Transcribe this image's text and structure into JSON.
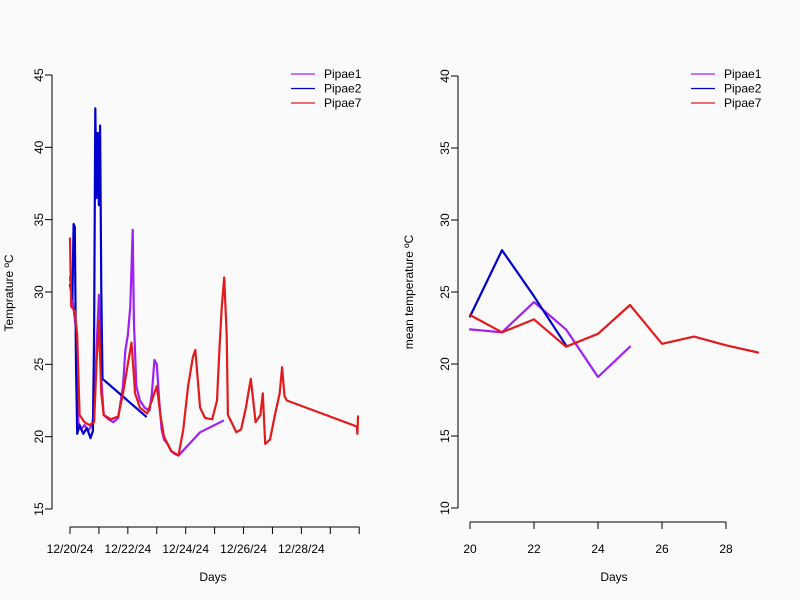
{
  "chart_data": [
    {
      "type": "line",
      "xlabel": "Days",
      "ylabel": "Temprature ºC",
      "ylim": [
        15,
        45
      ],
      "yticks": [
        15,
        20,
        25,
        30,
        35,
        40,
        45
      ],
      "xlim": [
        "12/20/24 00:00",
        "12/29/24 23:00"
      ],
      "xtick_labels": [
        "12/20/24",
        "12/22/24",
        "12/24/24",
        "12/26/24",
        "12/28/24"
      ],
      "legend": "top-right",
      "series": [
        {
          "name": "Pipae1",
          "color": "#a020f0",
          "points": [
            [
              "12/20/24 00:00",
              31.0
            ],
            [
              "12/20/24 03:00",
              28.8
            ],
            [
              "12/20/24 05:00",
              27.5
            ],
            [
              "12/20/24 07:00",
              21.0
            ],
            [
              "12/20/24 09:00",
              20.5
            ],
            [
              "12/20/24 12:00",
              20.8
            ],
            [
              "12/20/24 15:00",
              20.4
            ],
            [
              "12/20/24 18:00",
              20.8
            ],
            [
              "12/20/24 20:00",
              21.5
            ],
            [
              "12/20/24 22:00",
              26.0
            ],
            [
              "12/21/24 00:00",
              29.8
            ],
            [
              "12/21/24 02:00",
              24.0
            ],
            [
              "12/21/24 04:00",
              21.5
            ],
            [
              "12/21/24 08:00",
              21.2
            ],
            [
              "12/21/24 12:00",
              21.0
            ],
            [
              "12/21/24 16:00",
              21.3
            ],
            [
              "12/21/24 20:00",
              23.5
            ],
            [
              "12/21/24 22:00",
              26.0
            ],
            [
              "12/22/24 00:00",
              27.0
            ],
            [
              "12/22/24 02:00",
              29.0
            ],
            [
              "12/22/24 04:00",
              34.3
            ],
            [
              "12/22/24 05:00",
              28.0
            ],
            [
              "12/22/24 07:00",
              23.5
            ],
            [
              "12/22/24 10:00",
              22.5
            ],
            [
              "12/22/24 14:00",
              22.0
            ],
            [
              "12/22/24 18:00",
              21.8
            ],
            [
              "12/22/24 20:00",
              23.0
            ],
            [
              "12/22/24 22:00",
              25.3
            ],
            [
              "12/23/24 00:00",
              25.0
            ],
            [
              "12/23/24 02:00",
              22.5
            ],
            [
              "12/23/24 04:00",
              20.5
            ],
            [
              "12/23/24 06:00",
              19.8
            ],
            [
              "12/23/24 09:00",
              19.5
            ],
            [
              "12/23/24 12:00",
              19.0
            ],
            [
              "12/23/24 15:00",
              18.8
            ],
            [
              "12/23/24 18:00",
              18.7
            ],
            [
              "12/24/24 12:00",
              20.3
            ],
            [
              "12/25/24 07:00",
              21.1
            ]
          ]
        },
        {
          "name": "Pipae2",
          "color": "#0000cd",
          "points": [
            [
              "12/20/24 00:00",
              30.5
            ],
            [
              "12/20/24 02:00",
              29.5
            ],
            [
              "12/20/24 03:00",
              34.7
            ],
            [
              "12/20/24 04:00",
              34.5
            ],
            [
              "12/20/24 05:00",
              25.0
            ],
            [
              "12/20/24 06:00",
              20.2
            ],
            [
              "12/20/24 08:00",
              20.8
            ],
            [
              "12/20/24 11:00",
              20.2
            ],
            [
              "12/20/24 14:00",
              20.6
            ],
            [
              "12/20/24 17:00",
              19.9
            ],
            [
              "12/20/24 19:00",
              20.4
            ],
            [
              "12/20/24 20:00",
              27.0
            ],
            [
              "12/20/24 21:00",
              42.7
            ],
            [
              "12/20/24 22:00",
              36.5
            ],
            [
              "12/20/24 23:00",
              41.0
            ],
            [
              "12/21/24 00:00",
              36.0
            ],
            [
              "12/21/24 01:00",
              41.5
            ],
            [
              "12/21/24 02:00",
              30.0
            ],
            [
              "12/21/24 03:00",
              24.0
            ],
            [
              "12/22/24 15:00",
              21.4
            ]
          ]
        },
        {
          "name": "Pipae7",
          "color": "#e31a1c",
          "points": [
            [
              "12/20/24 00:00",
              33.7
            ],
            [
              "12/20/24 01:00",
              29.0
            ],
            [
              "12/20/24 04:00",
              28.7
            ],
            [
              "12/20/24 06:00",
              27.0
            ],
            [
              "12/20/24 08:00",
              21.5
            ],
            [
              "12/20/24 12:00",
              21.0
            ],
            [
              "12/20/24 16:00",
              20.8
            ],
            [
              "12/20/24 20:00",
              21.0
            ],
            [
              "12/20/24 22:00",
              25.0
            ],
            [
              "12/21/24 00:00",
              28.0
            ],
            [
              "12/21/24 02:00",
              23.0
            ],
            [
              "12/21/24 04:00",
              21.5
            ],
            [
              "12/21/24 10:00",
              21.2
            ],
            [
              "12/21/24 16:00",
              21.4
            ],
            [
              "12/21/24 20:00",
              23.0
            ],
            [
              "12/22/24 00:00",
              25.0
            ],
            [
              "12/22/24 03:00",
              26.5
            ],
            [
              "12/22/24 06:00",
              23.0
            ],
            [
              "12/22/24 10:00",
              22.0
            ],
            [
              "12/22/24 16:00",
              21.6
            ],
            [
              "12/22/24 20:00",
              22.5
            ],
            [
              "12/23/24 00:00",
              23.5
            ],
            [
              "12/23/24 03:00",
              21.5
            ],
            [
              "12/23/24 06:00",
              20.0
            ],
            [
              "12/23/24 12:00",
              19.0
            ],
            [
              "12/23/24 18:00",
              18.7
            ],
            [
              "12/23/24 22:00",
              20.5
            ],
            [
              "12/24/24 02:00",
              23.5
            ],
            [
              "12/24/24 06:00",
              25.5
            ],
            [
              "12/24/24 08:00",
              26.0
            ],
            [
              "12/24/24 12:00",
              22.0
            ],
            [
              "12/24/24 16:00",
              21.3
            ],
            [
              "12/24/24 22:00",
              21.2
            ],
            [
              "12/25/24 02:00",
              22.5
            ],
            [
              "12/25/24 04:00",
              26.0
            ],
            [
              "12/25/24 06:00",
              29.0
            ],
            [
              "12/25/24 08:00",
              31.0
            ],
            [
              "12/25/24 10:00",
              27.0
            ],
            [
              "12/25/24 11:00",
              21.5
            ],
            [
              "12/25/24 14:00",
              21.0
            ],
            [
              "12/25/24 18:00",
              20.3
            ],
            [
              "12/25/24 22:00",
              20.5
            ],
            [
              "12/26/24 02:00",
              22.0
            ],
            [
              "12/26/24 04:00",
              23.0
            ],
            [
              "12/26/24 06:00",
              24.0
            ],
            [
              "12/26/24 10:00",
              21.0
            ],
            [
              "12/26/24 14:00",
              21.5
            ],
            [
              "12/26/24 16:00",
              23.0
            ],
            [
              "12/26/24 18:00",
              19.5
            ],
            [
              "12/26/24 22:00",
              19.8
            ],
            [
              "12/27/24 02:00",
              21.5
            ],
            [
              "12/27/24 06:00",
              23.0
            ],
            [
              "12/27/24 08:00",
              24.8
            ],
            [
              "12/27/24 10:00",
              22.8
            ],
            [
              "12/27/24 12:00",
              22.5
            ],
            [
              "12/29/24 22:00",
              20.7
            ],
            [
              "12/29/24 22:30",
              20.2
            ],
            [
              "12/29/24 23:00",
              21.4
            ]
          ]
        }
      ]
    },
    {
      "type": "line",
      "xlabel": "Days",
      "ylabel": "mean temperature ºC",
      "ylim": [
        10,
        40
      ],
      "yticks": [
        10,
        15,
        20,
        25,
        30,
        35,
        40
      ],
      "xlim": [
        20,
        29
      ],
      "xticks": [
        20,
        22,
        24,
        26,
        28
      ],
      "legend": "top-right",
      "series": [
        {
          "name": "Pipae1",
          "color": "#a020f0",
          "x": [
            20,
            21,
            22,
            23,
            24,
            25
          ],
          "y": [
            22.4,
            22.2,
            24.3,
            22.4,
            19.1,
            21.2
          ]
        },
        {
          "name": "Pipae2",
          "color": "#0000cd",
          "x": [
            20,
            21,
            22,
            23
          ],
          "y": [
            23.3,
            27.9,
            24.7,
            21.3
          ]
        },
        {
          "name": "Pipae7",
          "color": "#e31a1c",
          "x": [
            20,
            21,
            22,
            23,
            24,
            25,
            26,
            27,
            28,
            29
          ],
          "y": [
            23.4,
            22.2,
            23.1,
            21.2,
            22.1,
            24.1,
            21.4,
            21.9,
            21.3,
            20.8
          ]
        }
      ]
    }
  ]
}
